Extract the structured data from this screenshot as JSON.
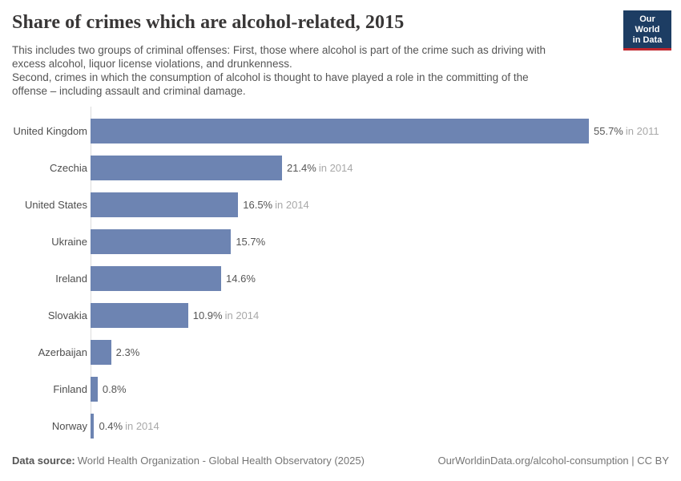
{
  "header": {
    "title": "Share of crimes which are alcohol-related, 2015",
    "logo": {
      "line1": "Our World",
      "line2": "in Data",
      "bg_color": "#1d3d63",
      "accent_color": "#c0262d"
    }
  },
  "subtitle": {
    "lines": [
      "This includes two groups of criminal offenses: First, those where alcohol is part of the crime such as driving with",
      "excess alcohol, liquor license violations, and drunkenness.",
      "Second, crimes in which the consumption of alcohol is thought to have played a role in the committing of the",
      "offense – including assault and criminal damage."
    ]
  },
  "chart_data": {
    "type": "bar",
    "orientation": "horizontal",
    "title": "Share of crimes which are alcohol-related, 2015",
    "unit": "%",
    "categories": [
      "United Kingdom",
      "Czechia",
      "United States",
      "Ukraine",
      "Ireland",
      "Slovakia",
      "Azerbaijan",
      "Finland",
      "Norway"
    ],
    "values": [
      55.7,
      21.4,
      16.5,
      15.7,
      14.6,
      10.9,
      2.3,
      0.8,
      0.4
    ],
    "value_labels": [
      "55.7%",
      "21.4%",
      "16.5%",
      "15.7%",
      "14.6%",
      "10.9%",
      "2.3%",
      "0.8%",
      "0.4%"
    ],
    "year_annotations": [
      "in 2011",
      "in 2014",
      "in 2014",
      "",
      "",
      "in 2014",
      "",
      "",
      "in 2014"
    ],
    "xlim": [
      0,
      55.7
    ],
    "grid": false,
    "legend": "none",
    "bar_color": "#6d84b2",
    "axis_color": "#dddddd"
  },
  "footer": {
    "source_label": "Data source:",
    "source_text": "World Health Organization - Global Health Observatory (2025)",
    "credit": "OurWorldinData.org/alcohol-consumption | CC BY"
  }
}
